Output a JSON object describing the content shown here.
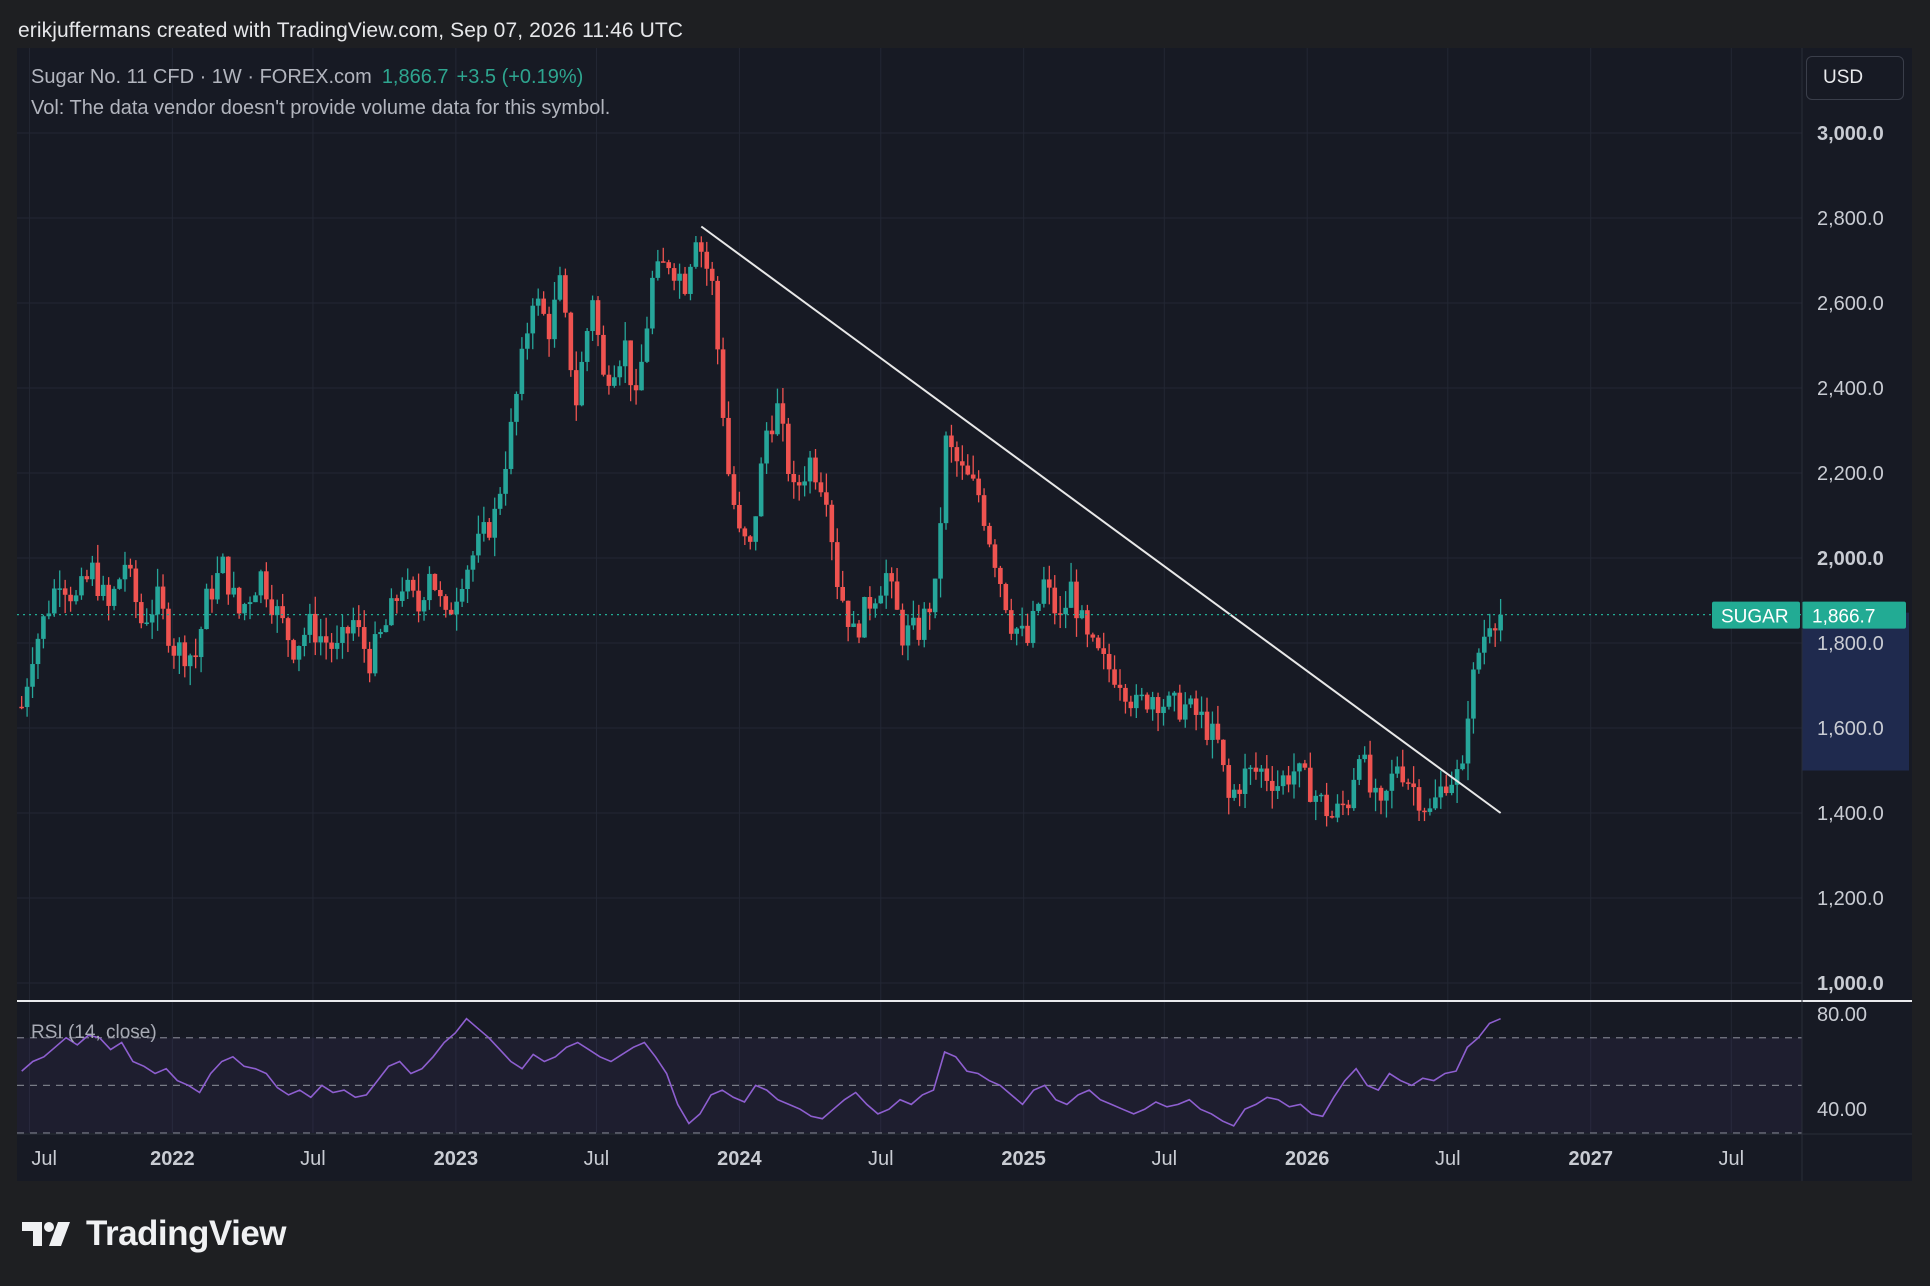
{
  "header": {
    "attribution": "erikjuffermans created with TradingView.com, Sep 07, 2026 11:46 UTC"
  },
  "legend": {
    "symbol": "Sugar No. 11 CFD · 1W · FOREX.com",
    "last": "1,866.7",
    "change": "+3.5 (+0.19%)",
    "volume_note": "Vol: The data vendor doesn't provide volume data for this symbol."
  },
  "toolbar": {
    "currency": "USD"
  },
  "price_tag": {
    "symbol": "SUGAR",
    "value": "1,866.7"
  },
  "rsi": {
    "label": "RSI (14, close)"
  },
  "brand": {
    "name": "TradingView"
  },
  "colors": {
    "up": "#26a69a",
    "down": "#ef5350",
    "rsi_line": "#8e5fd0",
    "trendline": "#e8e8e8",
    "tag_bg": "#22ab94",
    "background": "#171a24"
  },
  "chart_data": [
    {
      "type": "candlestick",
      "title": "Sugar No. 11 CFD · 1W · FOREX.com",
      "interval": "1W",
      "y_axis": {
        "position": "right",
        "ticks": [
          "1,000.0",
          "1,200.0",
          "1,400.0",
          "1,600.0",
          "1,800.0",
          "2,000.0",
          "2,200.0",
          "2,400.0",
          "2,600.0",
          "2,800.0",
          "3,000.0"
        ],
        "tick_values": [
          1000,
          1200,
          1400,
          1600,
          1800,
          2000,
          2200,
          2400,
          2600,
          2800,
          3000
        ],
        "bold_ticks": [
          "1,000.0",
          "2,000.0",
          "3,000.0"
        ],
        "range": [
          960,
          3200
        ]
      },
      "x_axis": {
        "ticks": [
          "Jul",
          "2022",
          "Jul",
          "2023",
          "Jul",
          "2024",
          "Jul",
          "2025",
          "Jul",
          "2026",
          "Jul",
          "2027",
          "Jul"
        ],
        "bold_ticks": [
          "2022",
          "2023",
          "2024",
          "2025",
          "2026",
          "2027"
        ],
        "range": [
          "2021-06-15",
          "2027-09-30"
        ]
      },
      "last_price": 1866.7,
      "grid": true,
      "series_path": [
        [
          "2021-06-21",
          1650
        ],
        [
          "2021-07-05",
          1780
        ],
        [
          "2021-08-09",
          1960
        ],
        [
          "2021-08-30",
          1900
        ],
        [
          "2021-09-20",
          1970
        ],
        [
          "2021-10-11",
          1880
        ],
        [
          "2021-11-01",
          1990
        ],
        [
          "2021-11-22",
          1850
        ],
        [
          "2021-12-13",
          1900
        ],
        [
          "2022-01-03",
          1790
        ],
        [
          "2022-01-31",
          1770
        ],
        [
          "2022-02-14",
          1900
        ],
        [
          "2022-03-07",
          1980
        ],
        [
          "2022-03-28",
          1870
        ],
        [
          "2022-04-25",
          1960
        ],
        [
          "2022-05-16",
          1870
        ],
        [
          "2022-06-06",
          1790
        ],
        [
          "2022-06-27",
          1840
        ],
        [
          "2022-08-01",
          1780
        ],
        [
          "2022-08-22",
          1850
        ],
        [
          "2022-09-12",
          1760
        ],
        [
          "2022-10-03",
          1840
        ],
        [
          "2022-10-24",
          1940
        ],
        [
          "2022-11-14",
          1880
        ],
        [
          "2022-11-28",
          1980
        ],
        [
          "2022-12-19",
          1850
        ],
        [
          "2023-01-09",
          1960
        ],
        [
          "2023-01-30",
          2030
        ],
        [
          "2023-02-20",
          2100
        ],
        [
          "2023-03-13",
          2300
        ],
        [
          "2023-04-10",
          2620
        ],
        [
          "2023-05-01",
          2540
        ],
        [
          "2023-05-15",
          2640
        ],
        [
          "2023-06-05",
          2370
        ],
        [
          "2023-06-26",
          2620
        ],
        [
          "2023-07-10",
          2420
        ],
        [
          "2023-08-07",
          2500
        ],
        [
          "2023-08-21",
          2360
        ],
        [
          "2023-09-11",
          2650
        ],
        [
          "2023-10-02",
          2700
        ],
        [
          "2023-10-23",
          2650
        ],
        [
          "2023-11-06",
          2770
        ],
        [
          "2023-11-27",
          2640
        ],
        [
          "2023-12-18",
          2200
        ],
        [
          "2024-01-01",
          2050
        ],
        [
          "2024-01-15",
          2020
        ],
        [
          "2024-02-05",
          2300
        ],
        [
          "2024-02-19",
          2350
        ],
        [
          "2024-03-11",
          2150
        ],
        [
          "2024-04-01",
          2230
        ],
        [
          "2024-04-22",
          2160
        ],
        [
          "2024-05-06",
          1950
        ],
        [
          "2024-05-27",
          1820
        ],
        [
          "2024-06-17",
          1900
        ],
        [
          "2024-07-08",
          1960
        ],
        [
          "2024-07-29",
          1820
        ],
        [
          "2024-08-19",
          1830
        ],
        [
          "2024-09-09",
          1920
        ],
        [
          "2024-09-23",
          2270
        ],
        [
          "2024-10-14",
          2200
        ],
        [
          "2024-11-04",
          2150
        ],
        [
          "2024-11-25",
          2000
        ],
        [
          "2024-12-16",
          1850
        ],
        [
          "2025-01-06",
          1800
        ],
        [
          "2025-01-27",
          1940
        ],
        [
          "2025-02-17",
          1850
        ],
        [
          "2025-03-03",
          1930
        ],
        [
          "2025-03-24",
          1800
        ],
        [
          "2025-04-14",
          1750
        ],
        [
          "2025-05-05",
          1720
        ],
        [
          "2025-05-26",
          1650
        ],
        [
          "2025-06-16",
          1680
        ],
        [
          "2025-07-07",
          1650
        ],
        [
          "2025-07-28",
          1650
        ],
        [
          "2025-08-18",
          1620
        ],
        [
          "2025-09-08",
          1560
        ],
        [
          "2025-09-22",
          1430
        ],
        [
          "2025-10-13",
          1490
        ],
        [
          "2025-11-03",
          1500
        ],
        [
          "2025-11-24",
          1470
        ],
        [
          "2025-12-15",
          1500
        ],
        [
          "2026-01-05",
          1460
        ],
        [
          "2026-02-02",
          1390
        ],
        [
          "2026-02-23",
          1430
        ],
        [
          "2026-03-09",
          1560
        ],
        [
          "2026-03-23",
          1450
        ],
        [
          "2026-04-06",
          1400
        ],
        [
          "2026-04-27",
          1520
        ],
        [
          "2026-05-18",
          1460
        ],
        [
          "2026-06-08",
          1400
        ],
        [
          "2026-06-29",
          1480
        ],
        [
          "2026-07-20",
          1490
        ],
        [
          "2026-07-27",
          1650
        ],
        [
          "2026-08-10",
          1780
        ],
        [
          "2026-08-24",
          1860
        ],
        [
          "2026-09-07",
          1866.7
        ]
      ],
      "trendline": {
        "from": [
          "2023-11-13",
          2780
        ],
        "to": [
          "2026-09-07",
          1400
        ]
      }
    },
    {
      "type": "line",
      "title": "RSI (14, close)",
      "y_axis": {
        "ticks": [
          "40.00",
          "80.00"
        ],
        "tick_values": [
          40,
          80
        ],
        "range": [
          30,
          85
        ]
      },
      "bands": [
        30,
        50,
        70
      ],
      "series": [
        {
          "values": [
            56,
            60,
            62,
            66,
            70,
            67,
            71,
            70,
            65,
            68,
            60,
            58,
            55,
            57,
            52,
            50,
            47,
            55,
            60,
            62,
            58,
            57,
            55,
            49,
            46,
            48,
            45,
            50,
            47,
            48,
            45,
            46,
            52,
            58,
            60,
            55,
            57,
            62,
            68,
            72,
            78,
            74,
            70,
            65,
            60,
            57,
            63,
            60,
            62,
            66,
            68,
            65,
            62,
            60,
            63,
            66,
            68,
            62,
            55,
            42,
            34,
            38,
            46,
            48,
            45,
            43,
            50,
            48,
            44,
            42,
            40,
            37,
            36,
            40,
            44,
            47,
            42,
            38,
            40,
            44,
            42,
            46,
            48,
            64,
            62,
            56,
            55,
            52,
            50,
            46,
            42,
            48,
            50,
            44,
            42,
            46,
            48,
            44,
            42,
            40,
            38,
            40,
            43,
            41,
            42,
            44,
            40,
            38,
            35,
            33,
            40,
            42,
            45,
            44,
            41,
            42,
            38,
            37,
            45,
            52,
            57,
            50,
            48,
            55,
            52,
            50,
            53,
            52,
            55,
            56,
            66,
            70,
            76,
            78
          ]
        }
      ]
    }
  ]
}
